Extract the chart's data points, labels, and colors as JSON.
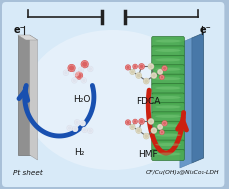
{
  "bg_outer": "#a8c0d8",
  "bg_inner": "#d8eaf8",
  "bg_center": "#eef5fc",
  "border_color": "#7090b0",
  "left_label": "Pt sheet",
  "right_label": "CF/Cu(OH)₂@Ni₃Co₁-LDH",
  "left_e": "e⁻",
  "right_e": "e⁻",
  "h2o_label": "H₂O",
  "h2_label": "H₂",
  "fdca_label": "FDCA",
  "hmf_label": "HMF",
  "plate_left_dark": "#909090",
  "plate_left_light": "#c8c8c8",
  "plate_right_dark": "#4878a8",
  "plate_right_light": "#6898c8",
  "green_dark": "#2a7030",
  "green_light": "#4aaa50",
  "arrow_blue": "#1850b0",
  "arrow_red": "#cc2010",
  "wire_color": "#222222",
  "atom_O": "#cc2020",
  "atom_H": "#d0d8e8",
  "atom_C": "#c0b890",
  "bond_color": "#666666"
}
